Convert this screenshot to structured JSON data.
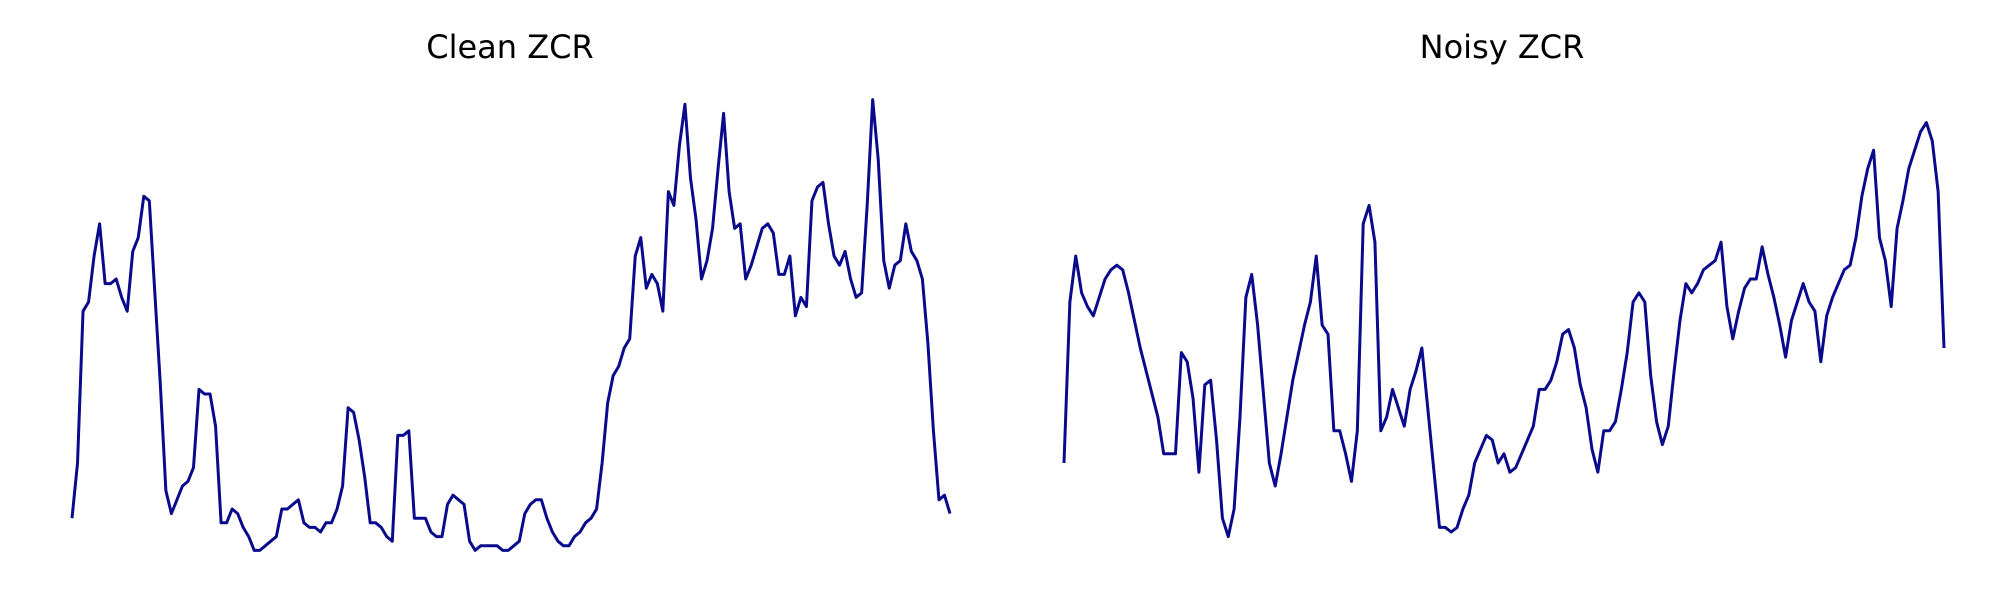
{
  "colors": {
    "line": "#0a0a8c",
    "background": "#ffffff"
  },
  "chart_data": [
    {
      "type": "line",
      "title": "Clean ZCR",
      "axes_visible": false,
      "grid": false,
      "xlim": [
        0,
        157
      ],
      "ylim": [
        0,
        1
      ],
      "series": [
        {
          "values": [
            0.08,
            0.2,
            0.53,
            0.55,
            0.65,
            0.72,
            0.59,
            0.59,
            0.6,
            0.56,
            0.53,
            0.66,
            0.69,
            0.78,
            0.77,
            0.57,
            0.37,
            0.14,
            0.09,
            0.12,
            0.15,
            0.16,
            0.19,
            0.36,
            0.35,
            0.35,
            0.28,
            0.07,
            0.07,
            0.1,
            0.09,
            0.06,
            0.04,
            0.01,
            0.01,
            0.02,
            0.03,
            0.04,
            0.1,
            0.1,
            0.11,
            0.12,
            0.07,
            0.06,
            0.06,
            0.05,
            0.07,
            0.07,
            0.1,
            0.15,
            0.32,
            0.31,
            0.25,
            0.17,
            0.07,
            0.07,
            0.06,
            0.04,
            0.03,
            0.26,
            0.26,
            0.27,
            0.08,
            0.08,
            0.08,
            0.05,
            0.04,
            0.04,
            0.11,
            0.13,
            0.12,
            0.11,
            0.03,
            0.01,
            0.02,
            0.02,
            0.02,
            0.02,
            0.01,
            0.01,
            0.02,
            0.03,
            0.09,
            0.11,
            0.12,
            0.12,
            0.08,
            0.05,
            0.03,
            0.02,
            0.02,
            0.04,
            0.05,
            0.07,
            0.08,
            0.1,
            0.2,
            0.33,
            0.39,
            0.41,
            0.45,
            0.47,
            0.65,
            0.69,
            0.58,
            0.61,
            0.59,
            0.53,
            0.79,
            0.76,
            0.89,
            0.98,
            0.82,
            0.73,
            0.6,
            0.64,
            0.71,
            0.84,
            0.96,
            0.79,
            0.71,
            0.72,
            0.6,
            0.63,
            0.67,
            0.71,
            0.72,
            0.7,
            0.61,
            0.61,
            0.65,
            0.52,
            0.56,
            0.54,
            0.77,
            0.8,
            0.81,
            0.72,
            0.65,
            0.63,
            0.66,
            0.6,
            0.56,
            0.57,
            0.76,
            0.99,
            0.86,
            0.64,
            0.58,
            0.63,
            0.64,
            0.72,
            0.66,
            0.64,
            0.6,
            0.46,
            0.27,
            0.12,
            0.13,
            0.09
          ]
        }
      ]
    },
    {
      "type": "line",
      "title": "Noisy ZCR",
      "axes_visible": false,
      "grid": false,
      "xlim": [
        0,
        157
      ],
      "ylim": [
        0,
        1
      ],
      "series": [
        {
          "values": [
            0.2,
            0.55,
            0.65,
            0.57,
            0.54,
            0.52,
            0.56,
            0.6,
            0.62,
            0.63,
            0.62,
            0.57,
            0.51,
            0.45,
            0.4,
            0.35,
            0.3,
            0.22,
            0.22,
            0.22,
            0.44,
            0.42,
            0.34,
            0.18,
            0.37,
            0.38,
            0.25,
            0.08,
            0.04,
            0.1,
            0.3,
            0.56,
            0.61,
            0.5,
            0.35,
            0.2,
            0.15,
            0.22,
            0.3,
            0.38,
            0.44,
            0.5,
            0.55,
            0.65,
            0.5,
            0.48,
            0.27,
            0.27,
            0.22,
            0.16,
            0.27,
            0.72,
            0.76,
            0.68,
            0.27,
            0.3,
            0.36,
            0.32,
            0.28,
            0.36,
            0.4,
            0.45,
            0.32,
            0.19,
            0.06,
            0.06,
            0.05,
            0.06,
            0.1,
            0.13,
            0.2,
            0.23,
            0.26,
            0.25,
            0.2,
            0.22,
            0.18,
            0.19,
            0.22,
            0.25,
            0.28,
            0.36,
            0.36,
            0.38,
            0.42,
            0.48,
            0.49,
            0.45,
            0.37,
            0.32,
            0.23,
            0.18,
            0.27,
            0.27,
            0.29,
            0.36,
            0.44,
            0.55,
            0.57,
            0.55,
            0.39,
            0.29,
            0.24,
            0.28,
            0.4,
            0.51,
            0.59,
            0.57,
            0.59,
            0.62,
            0.63,
            0.64,
            0.68,
            0.54,
            0.47,
            0.53,
            0.58,
            0.6,
            0.6,
            0.67,
            0.61,
            0.56,
            0.5,
            0.43,
            0.51,
            0.55,
            0.59,
            0.55,
            0.53,
            0.42,
            0.52,
            0.56,
            0.59,
            0.62,
            0.63,
            0.69,
            0.78,
            0.84,
            0.88,
            0.69,
            0.64,
            0.54,
            0.71,
            0.77,
            0.84,
            0.88,
            0.92,
            0.94,
            0.9,
            0.79,
            0.45
          ]
        }
      ]
    }
  ]
}
